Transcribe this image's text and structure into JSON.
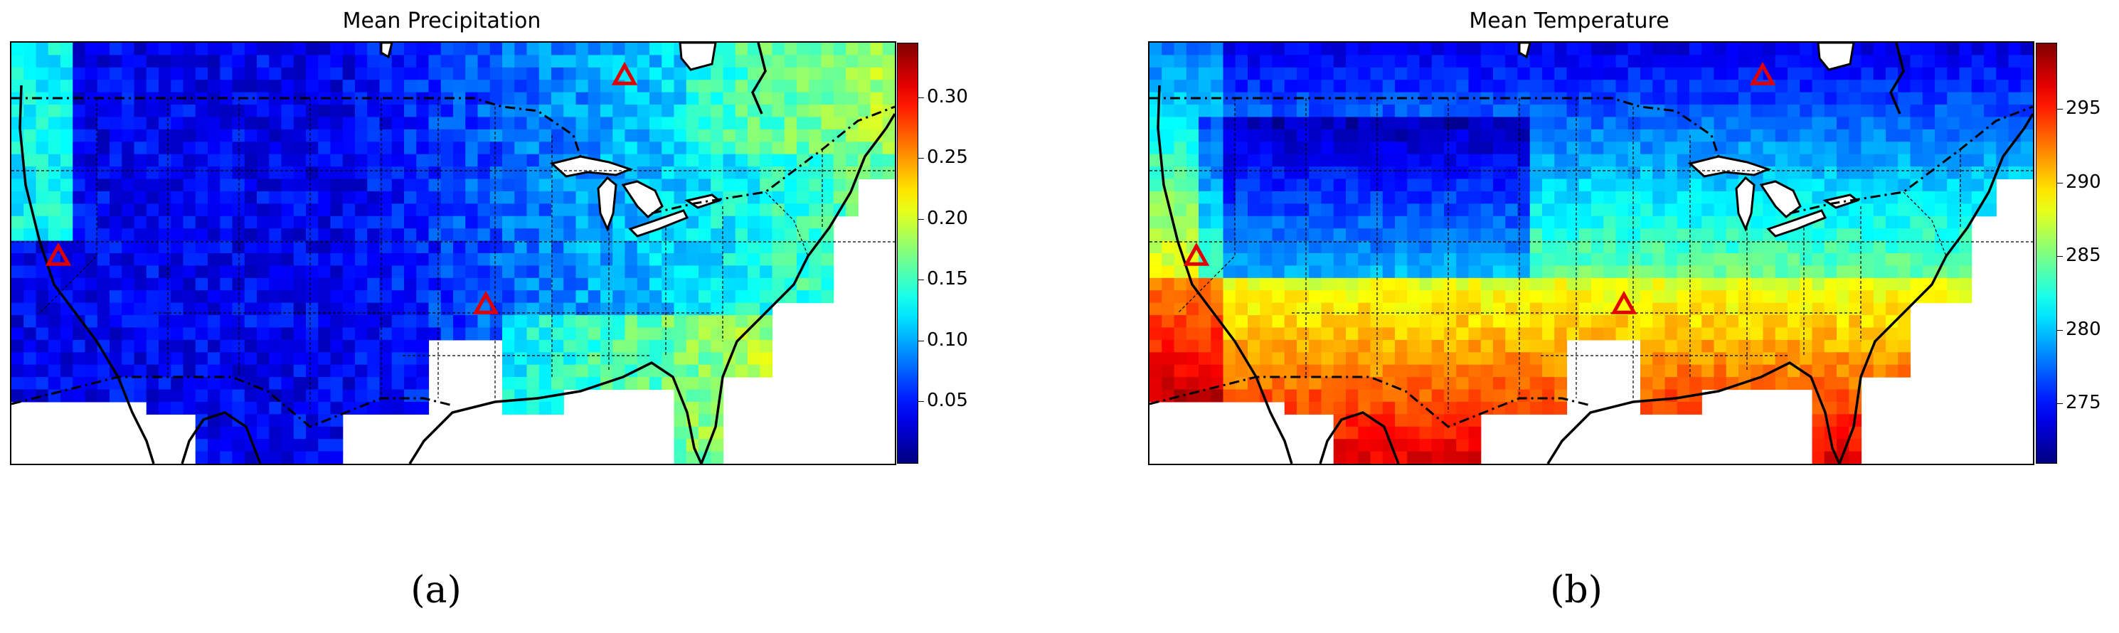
{
  "panels": [
    {
      "id": "a",
      "title": "Mean Precipitation",
      "caption": "(a)",
      "colorbar": {
        "colormap": "jet",
        "vmin": 0.0,
        "vmax": 0.345,
        "ticks": [
          "0.05",
          "0.10",
          "0.15",
          "0.20",
          "0.25",
          "0.30"
        ],
        "tick_values": [
          0.05,
          0.1,
          0.15,
          0.2,
          0.25,
          0.3
        ]
      },
      "markers": {
        "shape": "triangle",
        "color": "#e00000",
        "count": 3
      }
    },
    {
      "id": "b",
      "title": "Mean Temperature",
      "caption": "(b)",
      "colorbar": {
        "colormap": "jet",
        "vmin": 271.0,
        "vmax": 299.5,
        "ticks": [
          "275",
          "280",
          "285",
          "290",
          "295"
        ],
        "tick_values": [
          275,
          280,
          285,
          290,
          295
        ]
      },
      "markers": {
        "shape": "triangle",
        "color": "#e00000",
        "count": 3
      }
    }
  ]
}
